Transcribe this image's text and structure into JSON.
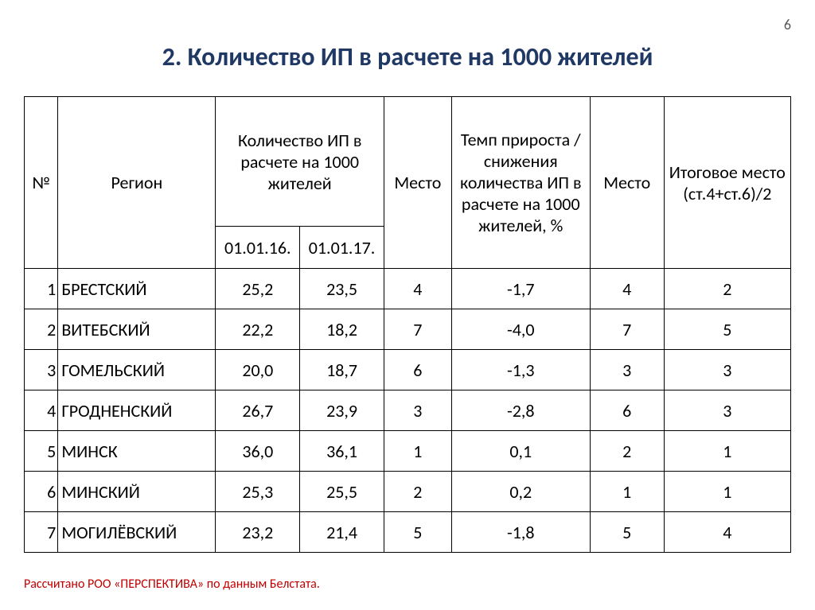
{
  "page_number": "6",
  "title": "2. Количество ИП в расчете на 1000 жителей",
  "headers": {
    "num": "№",
    "region": "Регион",
    "count_group": "Количество ИП в расчете на 1000 жителей",
    "date1": "01.01.16.",
    "date2": "01.01.17.",
    "place": "Место",
    "growth": "Темп прироста /снижения количества ИП в расчете на 1000 жителей, %",
    "place2": "Место",
    "final": "Итоговое место (ст.4+ст.6)/2"
  },
  "rows": [
    {
      "n": "1",
      "region": "БРЕСТСКИЙ",
      "v1": "25,2",
      "v2": "23,5",
      "p1": "4",
      "g": "-1,7",
      "p2": "4",
      "fin": "2"
    },
    {
      "n": "2",
      "region": "ВИТЕБСКИЙ",
      "v1": "22,2",
      "v2": "18,2",
      "p1": "7",
      "g": "-4,0",
      "p2": "7",
      "fin": "5"
    },
    {
      "n": "3",
      "region": "ГОМЕЛЬСКИЙ",
      "v1": "20,0",
      "v2": "18,7",
      "p1": "6",
      "g": "-1,3",
      "p2": "3",
      "fin": "3"
    },
    {
      "n": "4",
      "region": "ГРОДНЕНСКИЙ",
      "v1": "26,7",
      "v2": "23,9",
      "p1": "3",
      "g": "-2,8",
      "p2": "6",
      "fin": "3"
    },
    {
      "n": "5",
      "region": "МИНСК",
      "v1": "36,0",
      "v2": "36,1",
      "p1": "1",
      "g": "0,1",
      "p2": "2",
      "fin": "1"
    },
    {
      "n": "6",
      "region": "МИНСКИЙ",
      "v1": "25,3",
      "v2": "25,5",
      "p1": "2",
      "g": "0,2",
      "p2": "1",
      "fin": "1"
    },
    {
      "n": "7",
      "region": "МОГИЛЁВСКИЙ",
      "v1": "23,2",
      "v2": "21,4",
      "p1": "5",
      "g": "-1,8",
      "p2": "5",
      "fin": "4"
    }
  ],
  "footnote": "Рассчитано РОО «ПЕРСПЕКТИВА» по данным Белстата.",
  "style": {
    "title_color": "#1f3864",
    "footnote_color": "#c00000",
    "border_color": "#000000",
    "background": "#ffffff",
    "title_fontsize": 32,
    "body_fontsize": 22,
    "footnote_fontsize": 16
  }
}
